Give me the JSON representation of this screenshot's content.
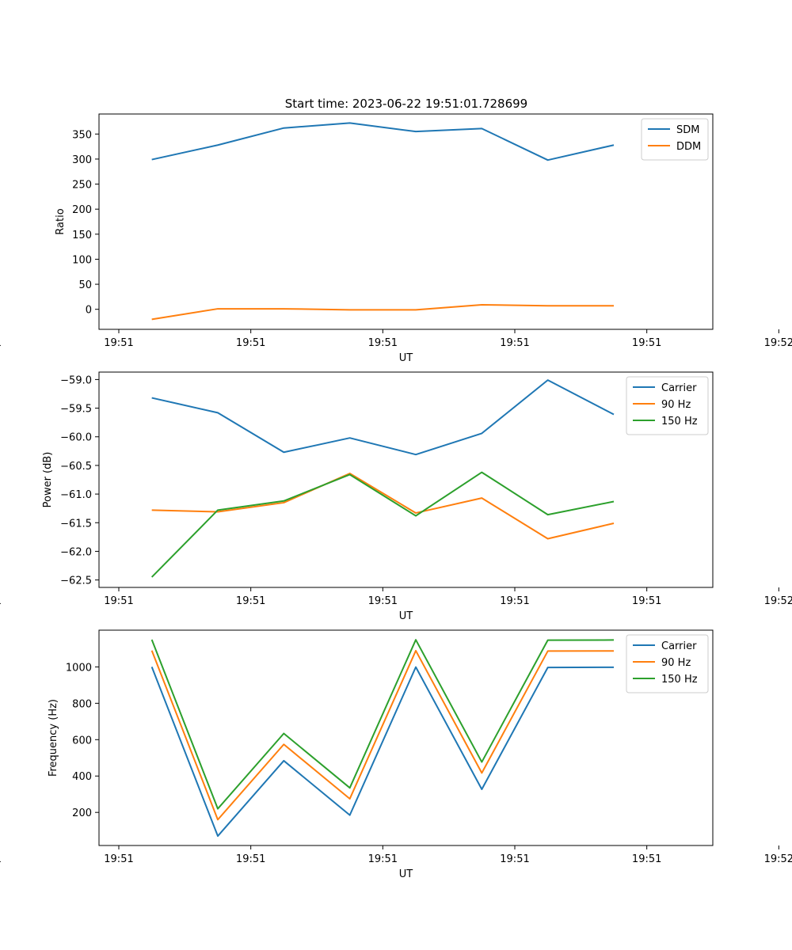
{
  "figure": {
    "title": "Start time: 2023-06-22 19:51:01.728699"
  },
  "chart_data": [
    {
      "type": "line",
      "title": "Start time: 2023-06-22 19:51:01.728699",
      "xlabel": "UT",
      "ylabel": "Ratio",
      "x": [
        "19:51:02.5",
        "19:51:03.5",
        "19:51:04.5",
        "19:51:05.5",
        "19:51:06.5",
        "19:51:07.5",
        "19:51:08.5",
        "19:51:09.5"
      ],
      "xlim": [
        "19:51:01.7",
        "19:51:11.0"
      ],
      "x_tick_labels": [
        "19:51",
        "19:51",
        "19:51",
        "19:51",
        "19:51",
        "19:51",
        "19:52"
      ],
      "ylim": [
        -40,
        390
      ],
      "y_ticks": [
        0,
        50,
        100,
        150,
        200,
        250,
        300,
        350
      ],
      "grid": false,
      "legend_position": "top-right",
      "series": [
        {
          "name": "SDM",
          "color": "#1f77b4",
          "values": [
            299,
            328,
            362,
            372,
            355,
            361,
            298,
            328
          ]
        },
        {
          "name": "DDM",
          "color": "#ff7f0e",
          "values": [
            -20,
            1,
            1,
            -1,
            -1,
            9,
            7,
            7
          ]
        }
      ]
    },
    {
      "type": "line",
      "title": "",
      "xlabel": "UT",
      "ylabel": "Power (dB)",
      "x": [
        "19:51:02.5",
        "19:51:03.5",
        "19:51:04.5",
        "19:51:05.5",
        "19:51:06.5",
        "19:51:07.5",
        "19:51:08.5",
        "19:51:09.5"
      ],
      "xlim": [
        "19:51:01.7",
        "19:51:11.0"
      ],
      "x_tick_labels": [
        "19:51",
        "19:51",
        "19:51",
        "19:51",
        "19:51",
        "19:51",
        "19:52"
      ],
      "ylim": [
        -62.63,
        -58.87
      ],
      "y_ticks": [
        -62.5,
        -62.0,
        -61.5,
        -61.0,
        -60.5,
        -60.0,
        -59.5,
        -59.0
      ],
      "y_tick_labels": [
        "−62.5",
        "−62.0",
        "−61.5",
        "−61.0",
        "−60.5",
        "−60.0",
        "−59.5",
        "−59.0"
      ],
      "grid": false,
      "legend_position": "top-right",
      "series": [
        {
          "name": "Carrier",
          "color": "#1f77b4",
          "values": [
            -59.32,
            -59.58,
            -60.27,
            -60.02,
            -60.31,
            -59.94,
            -59.01,
            -59.61
          ]
        },
        {
          "name": "90 Hz",
          "color": "#ff7f0e",
          "values": [
            -61.28,
            -61.31,
            -61.15,
            -60.64,
            -61.33,
            -61.07,
            -61.78,
            -61.51
          ]
        },
        {
          "name": "150 Hz",
          "color": "#2ca02c",
          "values": [
            -62.45,
            -61.28,
            -61.12,
            -60.66,
            -61.38,
            -60.62,
            -61.36,
            -61.13
          ]
        }
      ]
    },
    {
      "type": "line",
      "title": "",
      "xlabel": "UT",
      "ylabel": "Frequency (Hz)",
      "x": [
        "19:51:02.5",
        "19:51:03.5",
        "19:51:04.5",
        "19:51:05.5",
        "19:51:06.5",
        "19:51:07.5",
        "19:51:08.5",
        "19:51:09.5"
      ],
      "xlim": [
        "19:51:01.7",
        "19:51:11.0"
      ],
      "x_tick_labels": [
        "19:51",
        "19:51",
        "19:51",
        "19:51",
        "19:51",
        "19:51",
        "19:52"
      ],
      "ylim": [
        18,
        1202
      ],
      "y_ticks": [
        200,
        400,
        600,
        800,
        1000
      ],
      "grid": false,
      "legend_position": "top-right",
      "series": [
        {
          "name": "Carrier",
          "color": "#1f77b4",
          "values": [
            1000,
            70,
            484,
            185,
            999,
            327,
            997,
            998
          ]
        },
        {
          "name": "90 Hz",
          "color": "#ff7f0e",
          "values": [
            1090,
            160,
            574,
            275,
            1089,
            417,
            1087,
            1088
          ]
        },
        {
          "name": "150 Hz",
          "color": "#2ca02c",
          "values": [
            1150,
            220,
            634,
            335,
            1149,
            477,
            1147,
            1148
          ]
        }
      ]
    }
  ]
}
